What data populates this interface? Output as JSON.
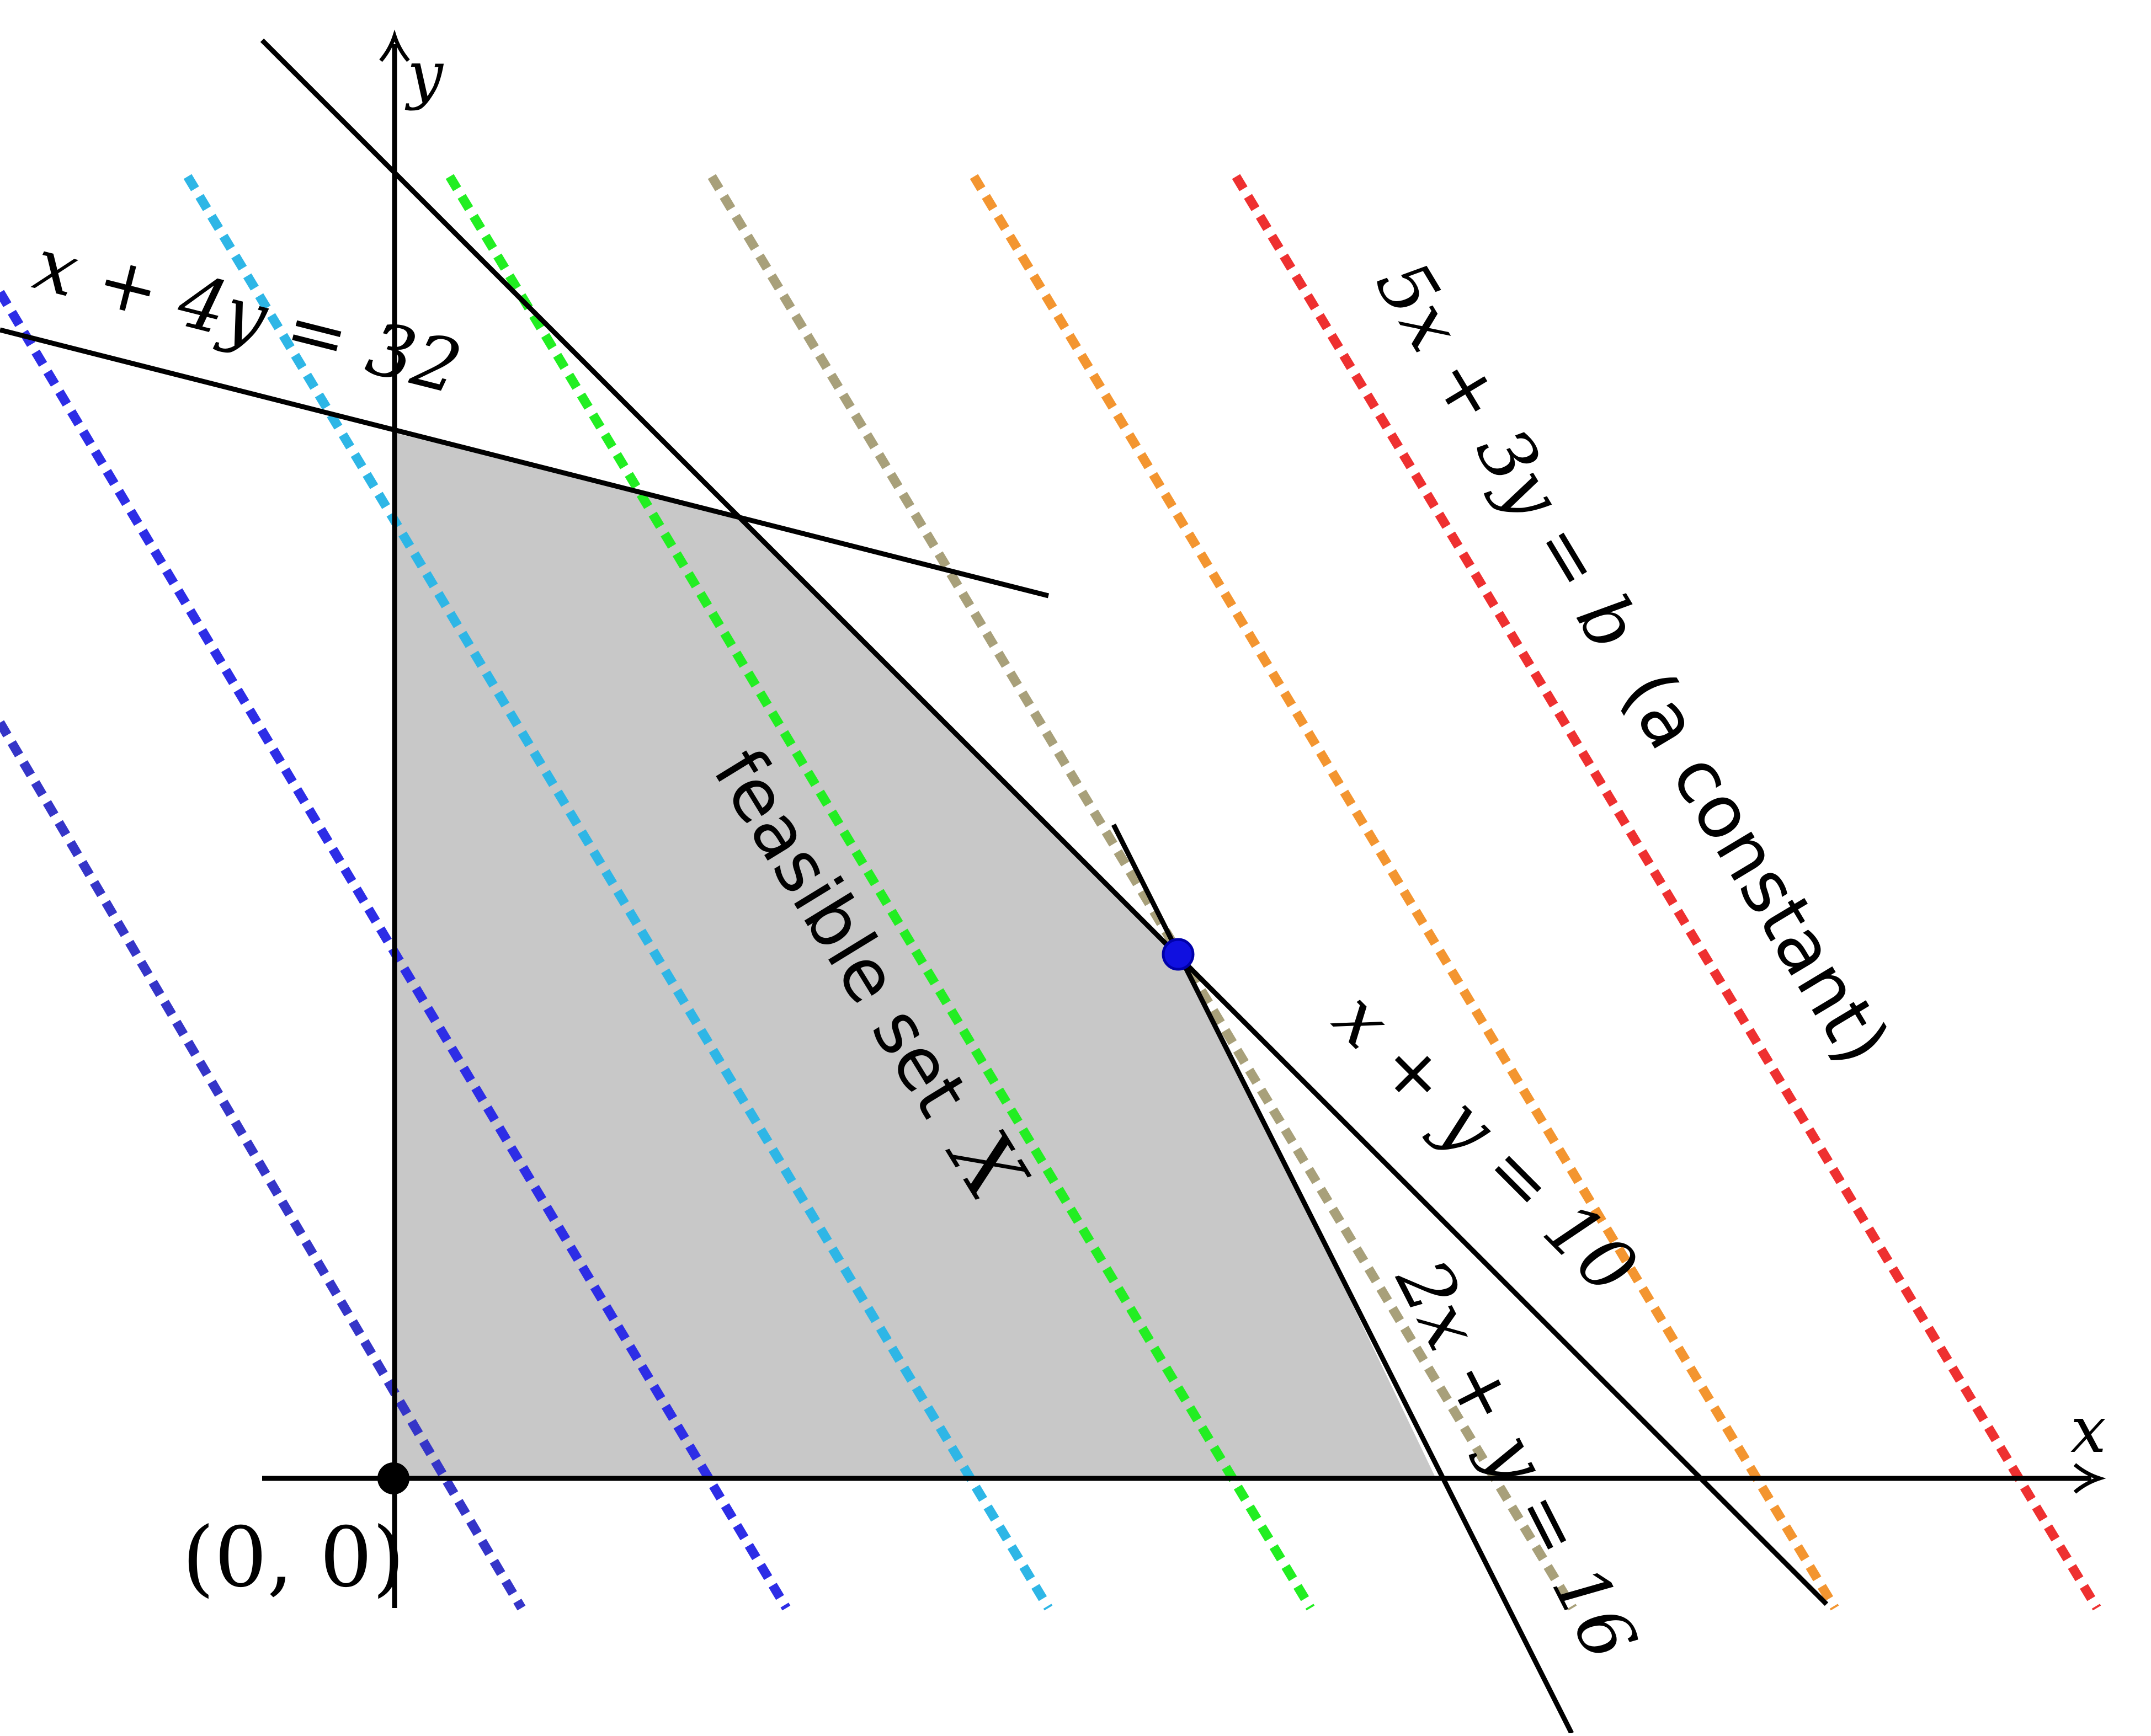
{
  "axes": {
    "x_label": "x",
    "y_label": "y",
    "origin_label": "(0, 0)"
  },
  "constraints": [
    {
      "id": "c1",
      "label": "x + 4y = 32"
    },
    {
      "id": "c2",
      "label": "x + y = 10"
    },
    {
      "id": "c3",
      "label": "2x + y = 16"
    }
  ],
  "feasible_region": {
    "label_text": "feasible set",
    "label_symbol": "X",
    "fill_color": "#c8c8c8"
  },
  "objective": {
    "label_equation": "5x + 3y = b",
    "label_note": "(a constant)",
    "level_line_colors": [
      "#3535c8",
      "#2d2de6",
      "#2eb6e6",
      "#22ee22",
      "#a8a07a",
      "#f39530",
      "#ee3030"
    ]
  },
  "optimum_point": {
    "color": "#1010e0"
  },
  "origin_point": {
    "color": "#000000"
  }
}
